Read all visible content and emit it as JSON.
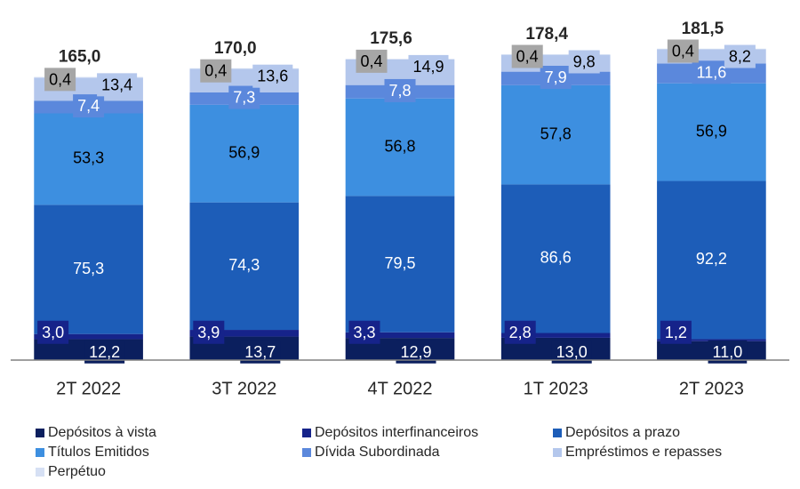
{
  "chart_data": {
    "type": "bar",
    "stacked": true,
    "categories": [
      "2T 2022",
      "3T 2022",
      "4T 2022",
      "1T 2023",
      "2T 2023"
    ],
    "series": [
      {
        "name": "Depósitos à vista",
        "color": "#0b1f5e",
        "values": [
          12.2,
          13.7,
          12.9,
          13.0,
          11.0
        ],
        "value_labels": [
          "12,2",
          "13,7",
          "12,9",
          "13,0",
          "11,0"
        ]
      },
      {
        "name": "Depósitos interfinanceiros",
        "color": "#16238a",
        "values": [
          3.0,
          3.9,
          3.3,
          2.8,
          1.2
        ],
        "value_labels": [
          "3,0",
          "3,9",
          "3,3",
          "2,8",
          "1,2"
        ]
      },
      {
        "name": "Depósitos a prazo",
        "color": "#1d5db8",
        "values": [
          75.3,
          74.3,
          79.5,
          86.6,
          92.2
        ],
        "value_labels": [
          "75,3",
          "74,3",
          "79,5",
          "86,6",
          "92,2"
        ]
      },
      {
        "name": "Títulos Emitidos",
        "color": "#3d8fe0",
        "values": [
          53.3,
          56.9,
          56.8,
          57.8,
          56.9
        ],
        "value_labels": [
          "53,3",
          "56,9",
          "56,8",
          "57,8",
          "56,9"
        ]
      },
      {
        "name": "Dívida Subordinada",
        "color": "#5b88dc",
        "values": [
          7.4,
          7.3,
          7.8,
          7.9,
          11.6
        ],
        "value_labels": [
          "7,4",
          "7,3",
          "7,8",
          "7,9",
          "11,6"
        ]
      },
      {
        "name": "Empréstimos e repasses",
        "color": "#b4c7ec",
        "values": [
          13.4,
          13.6,
          14.9,
          9.8,
          8.2
        ],
        "value_labels": [
          "13,4",
          "13,6",
          "14,9",
          "9,8",
          "8,2"
        ]
      },
      {
        "name": "Perpétuo",
        "color": "#d6e0f4",
        "values": [
          0.4,
          0.4,
          0.4,
          0.4,
          0.4
        ],
        "value_labels": [
          "0,4",
          "0,4",
          "0,4",
          "0,4",
          "0,4"
        ]
      }
    ],
    "totals": [
      165.0,
      170.0,
      175.6,
      178.4,
      181.5
    ],
    "total_labels": [
      "165,0",
      "170,0",
      "175,6",
      "178,4",
      "181,5"
    ],
    "ylim": [
      0,
      185
    ]
  }
}
